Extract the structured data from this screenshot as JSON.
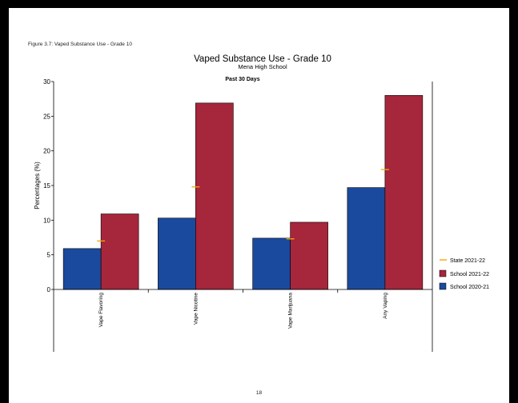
{
  "page": {
    "caption": "Figure 3.7: Vaped Substance Use - Grade 10",
    "page_number": "18"
  },
  "colors": {
    "school_2020_21": "#1a4a9e",
    "school_2021_22": "#a6263c",
    "state_2021_22": "#f5a800"
  },
  "chart_data": {
    "type": "bar",
    "title": "Vaped Substance Use - Grade 10",
    "subtitle": "Mena High School",
    "panel_title": "Past 30 Days",
    "ylabel": "Percentages (%)",
    "xlabel": "",
    "ylim": [
      0,
      30
    ],
    "yticks": [
      "0",
      "5",
      "10",
      "15",
      "20",
      "25",
      "30"
    ],
    "categories": [
      "Vape Flavoring",
      "Vape Nicotine",
      "Vape Marijuana",
      "Any Vaping"
    ],
    "series": [
      {
        "name": "School 2020-21",
        "values": [
          5.9,
          10.3,
          7.4,
          14.7
        ]
      },
      {
        "name": "School 2021-22",
        "values": [
          10.9,
          26.9,
          9.7,
          28.0
        ]
      }
    ],
    "state_markers": {
      "name": "State 2021-22",
      "values": [
        7.0,
        14.8,
        7.3,
        17.3
      ]
    },
    "legend": {
      "placement": "right",
      "items": [
        "State 2021-22",
        "School 2021-22",
        "School 2020-21"
      ]
    }
  }
}
